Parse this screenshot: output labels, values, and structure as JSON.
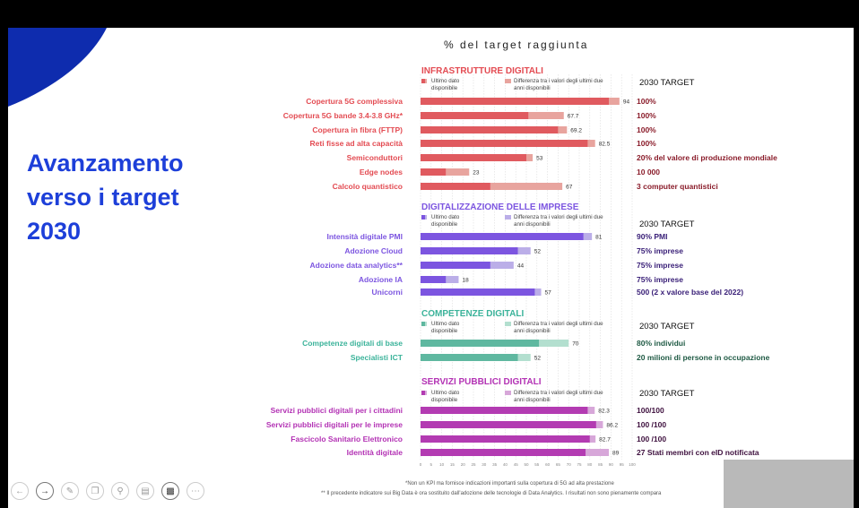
{
  "slide": {
    "heading": "Avanzamento verso i target 2030",
    "chart_title": "% del target raggiunta",
    "footnotes": [
      "*Non un KPI ma fornisce indicazioni importanti sulla copertura di 5G ad alta prestazione",
      "** Il precedente indicatore sui Big Data è ora sostituito dall'adozione delle tecnologie di Data Analytics. I risultati non sono pienamente compara"
    ]
  },
  "colors": {
    "heading": "#1d3fd9",
    "blob": "#0e2cae",
    "infra_dark": "#e05a5f",
    "infra_light": "#e8a49e",
    "infra_text": "#e34b52",
    "infra_target": "#8a1c2a",
    "impr_dark": "#7c55e0",
    "impr_light": "#bbaee8",
    "impr_text": "#7c55e0",
    "impr_target": "#3a2078",
    "comp_dark": "#5fb8a0",
    "comp_light": "#b3dfcf",
    "comp_text": "#3bb39a",
    "comp_target": "#1f5a44",
    "serv_dark": "#b33bb2",
    "serv_light": "#d7a7d9",
    "serv_text": "#b332b4",
    "serv_target": "#3e103e"
  },
  "toolbar": [
    "back-icon",
    "forward-icon",
    "pen-icon",
    "copy-icon",
    "zoom-icon",
    "subtitles-icon",
    "camera-icon",
    "more-icon"
  ],
  "chart_data": {
    "type": "bar",
    "title": "% del target raggiunta",
    "xlim": [
      0,
      100
    ],
    "axis_ticks": [
      "0",
      "5",
      "10",
      "15",
      "20",
      "25",
      "30",
      "35",
      "40",
      "45",
      "50",
      "55",
      "60",
      "65",
      "70",
      "75",
      "80",
      "85",
      "90",
      "95",
      "100"
    ],
    "legend": {
      "latest": "Ultimo dato disponibile",
      "diff": "Differenza tra i valori degli ultimi due anni disponibili"
    },
    "target_header": "2030 TARGET",
    "groups": [
      {
        "name": "INFRASTRUTTURE DIGITALI",
        "theme": "infra",
        "items": [
          {
            "label": "Copertura 5G complessiva",
            "value": 94,
            "prev": 89,
            "value_label": "94",
            "target": "100%"
          },
          {
            "label": "Copertura 5G bande 3.4-3.8 GHz*",
            "value": 67.7,
            "prev": 51,
            "value_label": "67.7",
            "target": "100%"
          },
          {
            "label": "Copertura in fibra (FTTP)",
            "value": 69.2,
            "prev": 65,
            "value_label": "69.2",
            "target": "100%"
          },
          {
            "label": "Reti fisse ad alta capacità",
            "value": 82.5,
            "prev": 79,
            "value_label": "82.5",
            "target": "100%"
          },
          {
            "label": "Semiconduttori",
            "value": 53,
            "prev": 50,
            "value_label": "53",
            "target": "20% del valore di produzione mondiale"
          },
          {
            "label": "Edge nodes",
            "value": 23,
            "prev": 12,
            "value_label": "23",
            "target": "10 000"
          },
          {
            "label": "Calcolo quantistico",
            "value": 67,
            "prev": 33,
            "value_label": "67",
            "target": "3 computer quantistici"
          }
        ]
      },
      {
        "name": "DIGITALIZZAZIONE DELLE IMPRESE",
        "theme": "impr",
        "items": [
          {
            "label": "Intensità digitale PMI",
            "value": 81,
            "prev": 77,
            "value_label": "81",
            "target": "90% PMI"
          },
          {
            "label": "Adozione Cloud",
            "value": 52,
            "prev": 46,
            "value_label": "52",
            "target": "75% imprese"
          },
          {
            "label": "Adozione data analytics**",
            "value": 44,
            "prev": 33,
            "value_label": "44",
            "target": "75% imprese"
          },
          {
            "label": "Adozione IA",
            "value": 18,
            "prev": 12,
            "value_label": "18",
            "target": "75% imprese"
          },
          {
            "label": "Unicorni",
            "value": 57,
            "prev": 54,
            "value_label": "57",
            "target": "500 (2 x valore base del 2022)"
          }
        ]
      },
      {
        "name": "COMPETENZE DIGITALI",
        "theme": "comp",
        "items": [
          {
            "label": "Competenze digitali di base",
            "value": 70,
            "prev": 56,
            "value_label": "70",
            "target": "80% individui"
          },
          {
            "label": "Specialisti ICT",
            "value": 52,
            "prev": 46,
            "value_label": "52",
            "target": "20 milioni di persone in occupazione"
          }
        ]
      },
      {
        "name": "SERVIZI PUBBLICI DIGITALI",
        "theme": "serv",
        "items": [
          {
            "label": "Servizi pubblici digitali per i cittadini",
            "value": 82.3,
            "prev": 79,
            "value_label": "82.3",
            "target": "100/100"
          },
          {
            "label": "Servizi pubblici digitali per le imprese",
            "value": 86.2,
            "prev": 83,
            "value_label": "86.2",
            "target": "100 /100"
          },
          {
            "label": "Fascicolo Sanitario Elettronico",
            "value": 82.7,
            "prev": 80,
            "value_label": "82.7",
            "target": "100 /100"
          },
          {
            "label": "Identità digitale",
            "value": 89,
            "prev": 78,
            "value_label": "89",
            "target": "27 Stati membri con eID notificata"
          }
        ]
      }
    ]
  }
}
